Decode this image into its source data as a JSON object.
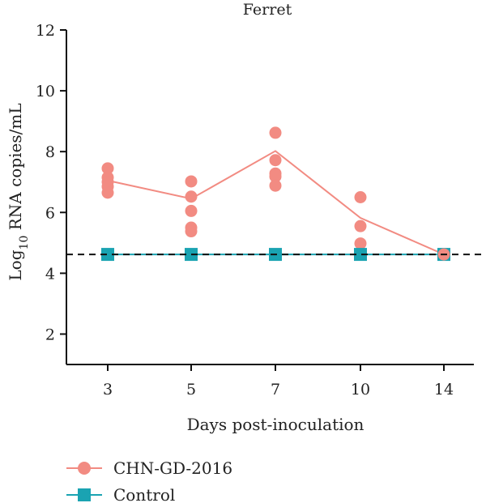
{
  "chart_data": {
    "type": "scatter",
    "title": "Ferret",
    "xlabel": "Days post-inoculation",
    "ylabel_prefix": "Log",
    "ylabel_sub": "10",
    "ylabel_rest": " RNA copies/mL",
    "categories": [
      "3",
      "5",
      "7",
      "10",
      "14"
    ],
    "ylim": [
      1,
      12
    ],
    "yticks": [
      2,
      4,
      6,
      8,
      10,
      12
    ],
    "detection_limit": 4.62,
    "grid": false,
    "legend_position": "bottom-left",
    "series": [
      {
        "name": "CHN-GD-2016",
        "color": "#f28b82",
        "marker": "circle",
        "points": {
          "3": [
            7.45,
            7.15,
            7.0,
            6.85,
            6.65
          ],
          "5": [
            7.02,
            6.52,
            6.05,
            5.5,
            5.38
          ],
          "7": [
            8.62,
            7.72,
            7.28,
            7.18,
            6.88
          ],
          "10": [
            6.5,
            5.55,
            4.98,
            4.68
          ],
          "14": [
            4.62
          ]
        },
        "mean": [
          7.05,
          6.45,
          8.02,
          5.82,
          4.62
        ]
      },
      {
        "name": "Control",
        "color": "#1aa3b2",
        "marker": "square",
        "mean": [
          4.62,
          4.62,
          4.62,
          4.62,
          4.62
        ]
      }
    ]
  }
}
